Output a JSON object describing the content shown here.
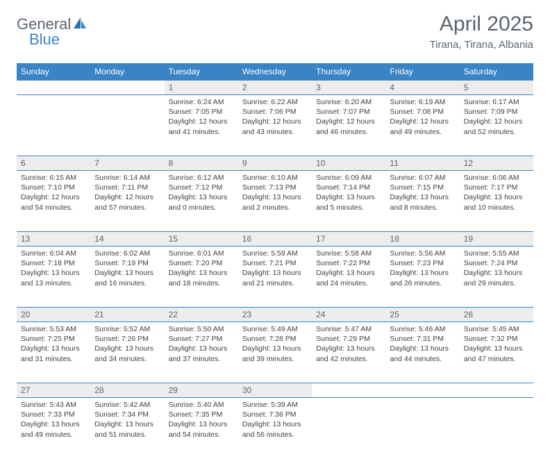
{
  "brand": {
    "part1": "General",
    "part2": "Blue"
  },
  "title": "April 2025",
  "location": "Tirana, Tirana, Albania",
  "colors": {
    "header_bg": "#3a83c5",
    "header_text": "#ffffff",
    "daynum_bg": "#ededed",
    "text": "#404040",
    "muted": "#5a6570",
    "border": "#3a83c5"
  },
  "weekdays": [
    "Sunday",
    "Monday",
    "Tuesday",
    "Wednesday",
    "Thursday",
    "Friday",
    "Saturday"
  ],
  "weeks": [
    [
      null,
      null,
      {
        "n": "1",
        "sr": "6:24 AM",
        "ss": "7:05 PM",
        "dl": "12 hours and 41 minutes."
      },
      {
        "n": "2",
        "sr": "6:22 AM",
        "ss": "7:06 PM",
        "dl": "12 hours and 43 minutes."
      },
      {
        "n": "3",
        "sr": "6:20 AM",
        "ss": "7:07 PM",
        "dl": "12 hours and 46 minutes."
      },
      {
        "n": "4",
        "sr": "6:19 AM",
        "ss": "7:08 PM",
        "dl": "12 hours and 49 minutes."
      },
      {
        "n": "5",
        "sr": "6:17 AM",
        "ss": "7:09 PM",
        "dl": "12 hours and 52 minutes."
      }
    ],
    [
      {
        "n": "6",
        "sr": "6:15 AM",
        "ss": "7:10 PM",
        "dl": "12 hours and 54 minutes."
      },
      {
        "n": "7",
        "sr": "6:14 AM",
        "ss": "7:11 PM",
        "dl": "12 hours and 57 minutes."
      },
      {
        "n": "8",
        "sr": "6:12 AM",
        "ss": "7:12 PM",
        "dl": "13 hours and 0 minutes."
      },
      {
        "n": "9",
        "sr": "6:10 AM",
        "ss": "7:13 PM",
        "dl": "13 hours and 2 minutes."
      },
      {
        "n": "10",
        "sr": "6:09 AM",
        "ss": "7:14 PM",
        "dl": "13 hours and 5 minutes."
      },
      {
        "n": "11",
        "sr": "6:07 AM",
        "ss": "7:15 PM",
        "dl": "13 hours and 8 minutes."
      },
      {
        "n": "12",
        "sr": "6:06 AM",
        "ss": "7:17 PM",
        "dl": "13 hours and 10 minutes."
      }
    ],
    [
      {
        "n": "13",
        "sr": "6:04 AM",
        "ss": "7:18 PM",
        "dl": "13 hours and 13 minutes."
      },
      {
        "n": "14",
        "sr": "6:02 AM",
        "ss": "7:19 PM",
        "dl": "13 hours and 16 minutes."
      },
      {
        "n": "15",
        "sr": "6:01 AM",
        "ss": "7:20 PM",
        "dl": "13 hours and 18 minutes."
      },
      {
        "n": "16",
        "sr": "5:59 AM",
        "ss": "7:21 PM",
        "dl": "13 hours and 21 minutes."
      },
      {
        "n": "17",
        "sr": "5:58 AM",
        "ss": "7:22 PM",
        "dl": "13 hours and 24 minutes."
      },
      {
        "n": "18",
        "sr": "5:56 AM",
        "ss": "7:23 PM",
        "dl": "13 hours and 26 minutes."
      },
      {
        "n": "19",
        "sr": "5:55 AM",
        "ss": "7:24 PM",
        "dl": "13 hours and 29 minutes."
      }
    ],
    [
      {
        "n": "20",
        "sr": "5:53 AM",
        "ss": "7:25 PM",
        "dl": "13 hours and 31 minutes."
      },
      {
        "n": "21",
        "sr": "5:52 AM",
        "ss": "7:26 PM",
        "dl": "13 hours and 34 minutes."
      },
      {
        "n": "22",
        "sr": "5:50 AM",
        "ss": "7:27 PM",
        "dl": "13 hours and 37 minutes."
      },
      {
        "n": "23",
        "sr": "5:49 AM",
        "ss": "7:28 PM",
        "dl": "13 hours and 39 minutes."
      },
      {
        "n": "24",
        "sr": "5:47 AM",
        "ss": "7:29 PM",
        "dl": "13 hours and 42 minutes."
      },
      {
        "n": "25",
        "sr": "5:46 AM",
        "ss": "7:31 PM",
        "dl": "13 hours and 44 minutes."
      },
      {
        "n": "26",
        "sr": "5:45 AM",
        "ss": "7:32 PM",
        "dl": "13 hours and 47 minutes."
      }
    ],
    [
      {
        "n": "27",
        "sr": "5:43 AM",
        "ss": "7:33 PM",
        "dl": "13 hours and 49 minutes."
      },
      {
        "n": "28",
        "sr": "5:42 AM",
        "ss": "7:34 PM",
        "dl": "13 hours and 51 minutes."
      },
      {
        "n": "29",
        "sr": "5:40 AM",
        "ss": "7:35 PM",
        "dl": "13 hours and 54 minutes."
      },
      {
        "n": "30",
        "sr": "5:39 AM",
        "ss": "7:36 PM",
        "dl": "13 hours and 56 minutes."
      },
      null,
      null,
      null
    ]
  ],
  "labels": {
    "sunrise": "Sunrise:",
    "sunset": "Sunset:",
    "daylight": "Daylight:"
  }
}
